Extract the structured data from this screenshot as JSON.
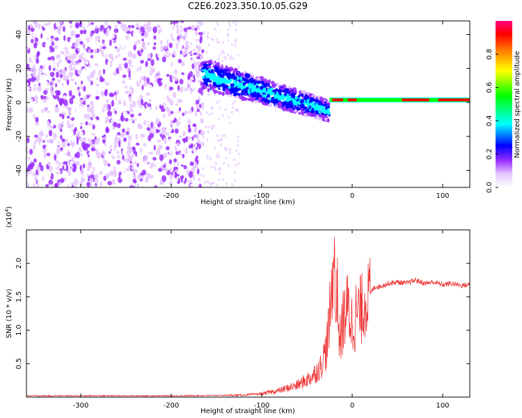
{
  "title": "C2E6.2023.350.10.05.G29",
  "chart_data": [
    {
      "type": "heatmap",
      "xlabel": "Height of straight line (km)",
      "ylabel": "Frequency (Hz)",
      "xlim": [
        -360,
        130
      ],
      "ylim": [
        -50,
        48
      ],
      "x_ticks": [
        -300,
        -200,
        -100,
        0,
        100
      ],
      "y_ticks": [
        -40,
        -20,
        0,
        20,
        40
      ],
      "colorbar": {
        "label": "Normalized spectral amplitude",
        "range": [
          0.0,
          1.0
        ],
        "ticks": [
          0.0,
          0.2,
          0.4,
          0.6,
          0.8
        ],
        "colors": [
          "#ffffff",
          "#e6c8ff",
          "#9b30ff",
          "#0000ff",
          "#00ffff",
          "#00ff00",
          "#ffff00",
          "#ff8000",
          "#ff0000",
          "#ff0080"
        ]
      },
      "regions": [
        {
          "name": "noise",
          "x": [
            -360,
            -165
          ],
          "f": [
            -50,
            48
          ],
          "amp": 0.15
        },
        {
          "name": "scintillation",
          "x": [
            -165,
            -25
          ],
          "f_start": 17,
          "f_end": -5,
          "amp": 0.3
        },
        {
          "name": "carrier",
          "x": [
            -25,
            130
          ],
          "f": 1.5,
          "amp": 0.95
        }
      ]
    },
    {
      "type": "line",
      "xlabel": "Height of straight line (km)",
      "ylabel": "SNR (10 * v/v)",
      "multiplier": "(x10",
      "multiplier_exp": "4",
      "multiplier_close": ")",
      "xlim": [
        -360,
        130
      ],
      "ylim": [
        0,
        2.5
      ],
      "x_ticks": [
        -300,
        -200,
        -100,
        0,
        100
      ],
      "y_ticks": [
        0.5,
        1.0,
        1.5,
        2.0
      ],
      "color": "#ee3333",
      "series": [
        {
          "x": [
            -360,
            -300,
            -200,
            -150,
            -120,
            -100,
            -80,
            -60,
            -45,
            -35,
            -28,
            -24,
            -21,
            -20,
            -19,
            -18,
            -17,
            -16,
            -14,
            -12,
            -10,
            -5,
            0,
            5,
            10,
            15,
            20,
            25,
            30,
            40,
            50,
            60,
            70,
            80,
            90,
            100,
            110,
            120,
            130
          ],
          "values": [
            0.02,
            0.02,
            0.02,
            0.025,
            0.03,
            0.05,
            0.1,
            0.18,
            0.3,
            0.45,
            0.75,
            1.3,
            1.85,
            2.45,
            1.5,
            1.1,
            1.7,
            1.5,
            0.8,
            0.95,
            1.15,
            1.35,
            1.1,
            1.25,
            1.3,
            1.45,
            1.55,
            1.65,
            1.65,
            1.7,
            1.72,
            1.7,
            1.75,
            1.7,
            1.72,
            1.68,
            1.7,
            1.67,
            1.68
          ]
        }
      ]
    }
  ]
}
